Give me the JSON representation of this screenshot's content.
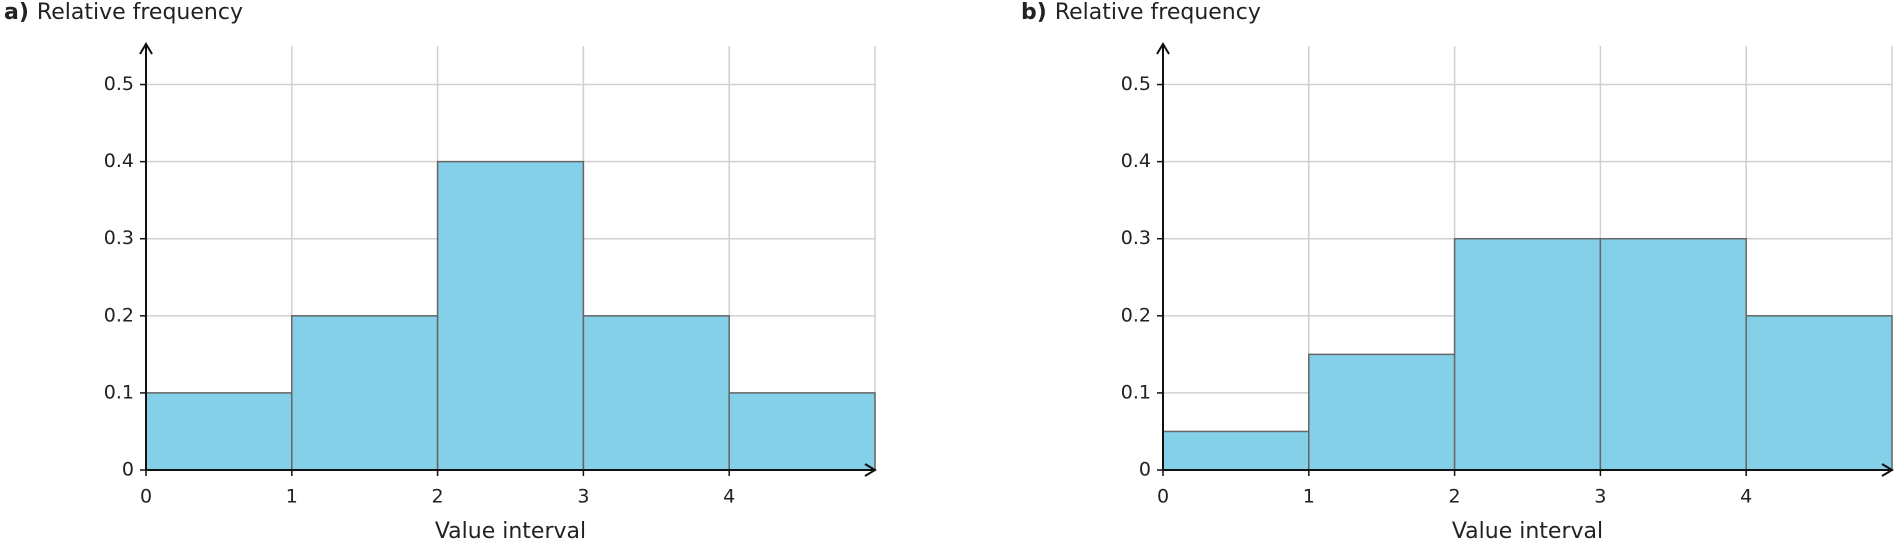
{
  "chart_data": [
    {
      "type": "histogram",
      "panel_label": "a)",
      "title": "Relative frequency",
      "xlabel": "Value interval",
      "bins": [
        0,
        1,
        2,
        3,
        4,
        5
      ],
      "values": [
        0.1,
        0.2,
        0.4,
        0.2,
        0.1
      ],
      "color": "#83d0e8",
      "xlim": [
        0,
        5
      ],
      "xticks": [
        0,
        1,
        2,
        3,
        4
      ],
      "ylim": [
        0,
        0.55
      ],
      "yticks": [
        0,
        0.1,
        0.2,
        0.3,
        0.4,
        0.5
      ],
      "grid": true
    },
    {
      "type": "histogram",
      "panel_label": "b)",
      "title": "Relative frequency",
      "xlabel": "Value interval",
      "bins": [
        0,
        1,
        2,
        3,
        4,
        5
      ],
      "values": [
        0.05,
        0.15,
        0.3,
        0.3,
        0.2
      ],
      "color": "#83d0e8",
      "xlim": [
        0,
        5
      ],
      "xticks": [
        0,
        1,
        2,
        3,
        4
      ],
      "ylim": [
        0,
        0.55
      ],
      "yticks": [
        0,
        0.1,
        0.2,
        0.3,
        0.4,
        0.5
      ],
      "grid": true
    }
  ]
}
